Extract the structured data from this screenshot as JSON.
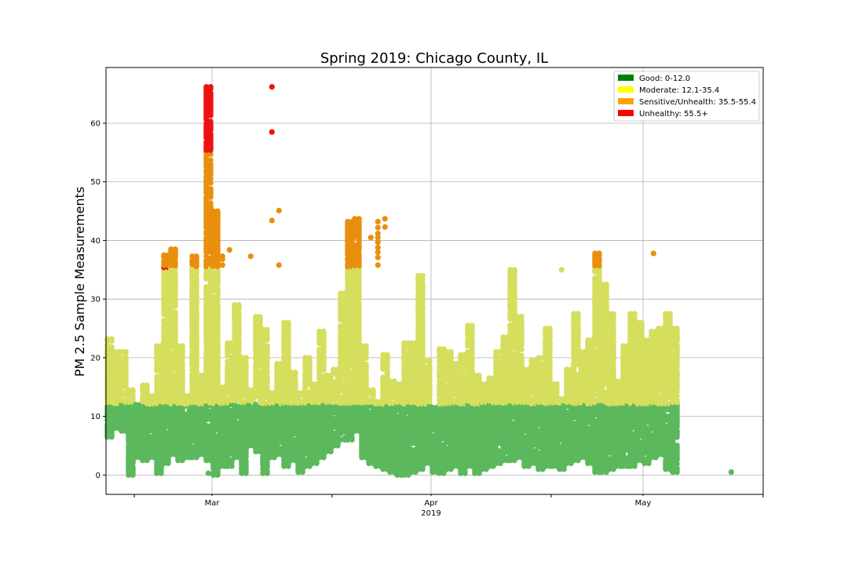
{
  "chart_data": {
    "type": "scatter",
    "title": "Spring 2019: Chicago County, IL",
    "xlabel": "",
    "ylabel": "PM 2.5 Sample Measurements",
    "xlim": [
      "2019-02-14",
      "2019-05-18"
    ],
    "ylim": [
      -3.3,
      69.5
    ],
    "x_ticks": [
      {
        "date": "2019-03-01",
        "label": "Mar",
        "sublabel": ""
      },
      {
        "date": "2019-04-01",
        "label": "Apr",
        "sublabel": "2019"
      },
      {
        "date": "2019-05-01",
        "label": "May",
        "sublabel": ""
      }
    ],
    "x_minor_ticks": [
      "2019-02-18",
      "2019-03-18",
      "2019-04-18",
      "2019-05-18"
    ],
    "y_ticks": [
      0,
      10,
      20,
      30,
      40,
      50,
      60
    ],
    "grid": true,
    "legend_position": "top-right",
    "categories": [
      {
        "name": "Good: 0-12.0",
        "legend_color": "#008000",
        "point_color": "#5cb85c",
        "min": 0,
        "max": 12.0
      },
      {
        "name": "Moderate: 12.1-35.4",
        "legend_color": "#ffff00",
        "point_color": "#d6de5e",
        "min": 12.1,
        "max": 35.4
      },
      {
        "name": "Sensitive/Unhealth: 35.5-55.4",
        "legend_color": "#ffa500",
        "point_color": "#e8900e",
        "min": 35.5,
        "max": 55.4
      },
      {
        "name": "Unhealthy: 55.5+",
        "legend_color": "#ff0000",
        "point_color": "#ee1111",
        "min": 55.5,
        "max": 1000
      }
    ],
    "daily_ranges": [
      [
        6.5,
        23.2
      ],
      [
        8,
        21
      ],
      [
        7.5,
        21
      ],
      [
        0,
        14.5
      ],
      [
        3,
        12
      ],
      [
        2.5,
        15.3
      ],
      [
        3,
        13.5
      ],
      [
        0.3,
        22
      ],
      [
        2,
        37.5
      ],
      [
        3.5,
        38.5
      ],
      [
        2.5,
        22
      ],
      [
        3,
        13.5
      ],
      [
        3,
        37.3
      ],
      [
        3.5,
        17
      ],
      [
        2.5,
        66.2
      ],
      [
        0,
        45
      ],
      [
        1.5,
        15
      ],
      [
        1.5,
        22.5
      ],
      [
        3,
        29
      ],
      [
        0.3,
        20
      ],
      [
        5,
        14.5
      ],
      [
        4,
        27
      ],
      [
        0.3,
        24.8
      ],
      [
        3,
        14
      ],
      [
        3.5,
        19
      ],
      [
        1.5,
        26
      ],
      [
        2.5,
        17.5
      ],
      [
        0.5,
        14
      ],
      [
        1.5,
        20
      ],
      [
        2,
        15.5
      ],
      [
        3,
        24.5
      ],
      [
        4,
        17
      ],
      [
        5,
        18
      ],
      [
        6,
        31
      ],
      [
        6,
        43.2
      ],
      [
        7.5,
        43.7
      ],
      [
        3,
        22
      ],
      [
        2,
        14.5
      ],
      [
        1.5,
        12.5
      ],
      [
        1,
        20.5
      ],
      [
        0.5,
        16
      ],
      [
        0,
        15.5
      ],
      [
        0,
        22.5
      ],
      [
        0.5,
        22.5
      ],
      [
        1,
        34
      ],
      [
        2,
        19.5
      ],
      [
        0.5,
        11.5
      ],
      [
        0.3,
        21.5
      ],
      [
        1,
        21
      ],
      [
        1.5,
        19
      ],
      [
        0.3,
        20.5
      ],
      [
        1.5,
        25.5
      ],
      [
        0.3,
        17
      ],
      [
        1,
        15.5
      ],
      [
        1.5,
        16.5
      ],
      [
        2,
        21
      ],
      [
        2.5,
        23.5
      ],
      [
        2.5,
        35
      ],
      [
        3,
        27
      ],
      [
        1.5,
        18
      ],
      [
        2,
        19.5
      ],
      [
        1,
        20
      ],
      [
        1.5,
        25
      ],
      [
        1.5,
        15.5
      ],
      [
        1,
        13
      ],
      [
        2,
        18
      ],
      [
        2.5,
        27.5
      ],
      [
        3,
        21
      ],
      [
        2,
        23
      ],
      [
        0.5,
        37.8
      ],
      [
        0.5,
        32.5
      ],
      [
        1,
        27.5
      ],
      [
        1.5,
        16
      ],
      [
        1.5,
        22
      ],
      [
        1.5,
        27.5
      ],
      [
        2.5,
        26
      ],
      [
        2,
        23
      ],
      [
        3,
        24.5
      ],
      [
        3.5,
        25
      ],
      [
        1,
        27.5
      ],
      [
        0.5,
        25
      ]
    ],
    "notable_points": [
      {
        "x": "2019-02-21",
        "y": 11
      },
      {
        "x": "2019-02-28",
        "y": 0.3
      },
      {
        "x": "2019-03-02",
        "y": 35.8
      },
      {
        "x": "2019-03-02",
        "y": 36.8
      },
      {
        "x": "2019-03-02",
        "y": 37.3
      },
      {
        "x": "2019-03-03",
        "y": 38.4
      },
      {
        "x": "2019-03-06",
        "y": 37.3
      },
      {
        "x": "2019-03-09",
        "y": 66.2
      },
      {
        "x": "2019-03-09",
        "y": 58.5
      },
      {
        "x": "2019-03-09",
        "y": 43.4
      },
      {
        "x": "2019-03-10",
        "y": 45.1
      },
      {
        "x": "2019-03-10",
        "y": 35.8
      },
      {
        "x": "2019-03-23",
        "y": 40.5
      },
      {
        "x": "2019-03-24",
        "y": 43.2
      },
      {
        "x": "2019-03-24",
        "y": 42.2
      },
      {
        "x": "2019-03-24",
        "y": 41.2
      },
      {
        "x": "2019-03-24",
        "y": 40.5
      },
      {
        "x": "2019-03-24",
        "y": 39.7
      },
      {
        "x": "2019-03-24",
        "y": 38.8
      },
      {
        "x": "2019-03-24",
        "y": 38.0
      },
      {
        "x": "2019-03-24",
        "y": 37.1
      },
      {
        "x": "2019-03-24",
        "y": 35.8
      },
      {
        "x": "2019-03-25",
        "y": 43.7
      },
      {
        "x": "2019-03-25",
        "y": 42.3
      },
      {
        "x": "2019-04-19",
        "y": 35.0
      },
      {
        "x": "2019-05-02",
        "y": 37.8
      },
      {
        "x": "2019-05-13",
        "y": 0.5
      }
    ]
  }
}
